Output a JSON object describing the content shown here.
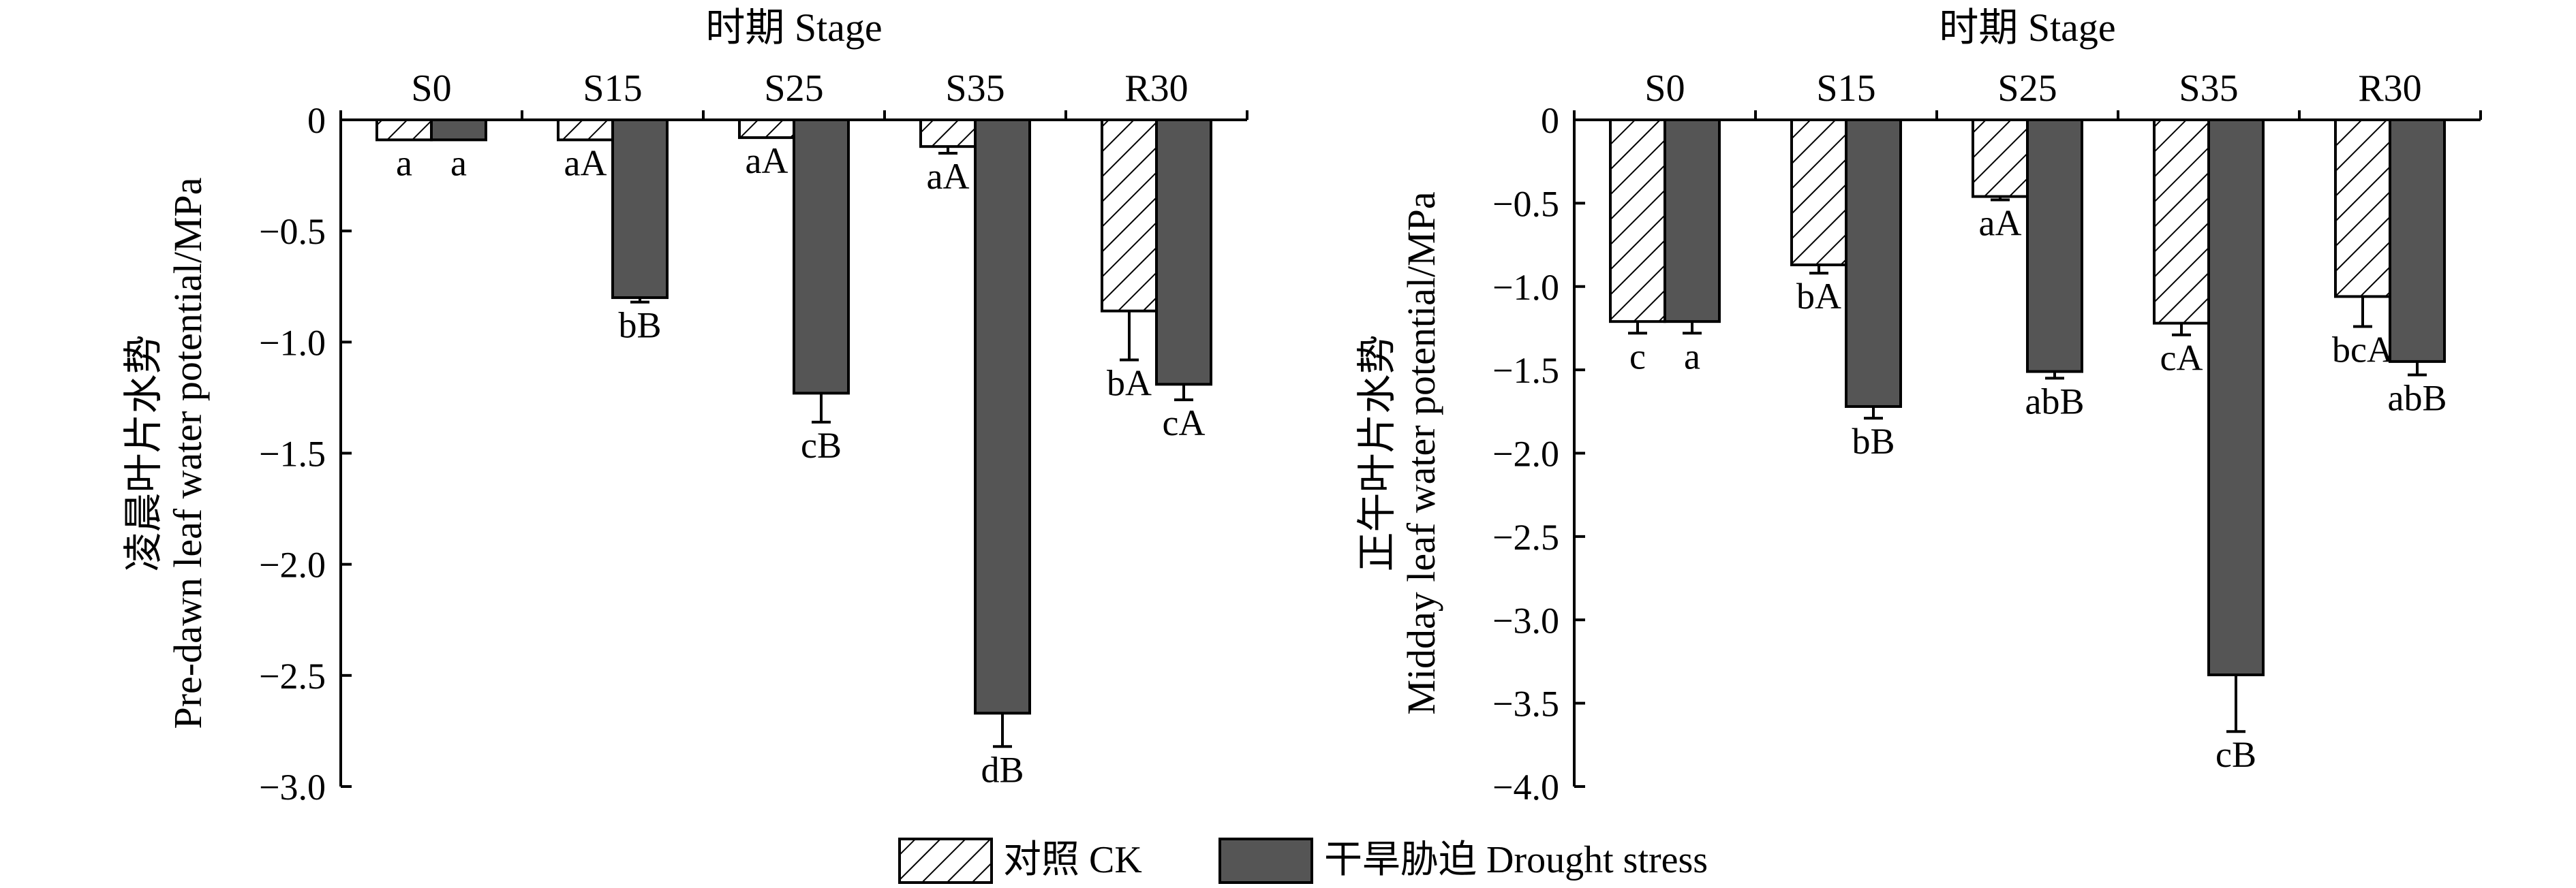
{
  "legend": [
    {
      "label": "对照 CK",
      "pattern": "hatch"
    },
    {
      "label": "干旱胁迫 Drought stress",
      "pattern": "solid"
    }
  ],
  "colors": {
    "drought_fill": "#555555",
    "ck_fill": "#ffffff",
    "line": "#000000"
  },
  "chart_data": [
    {
      "type": "bar",
      "title": "时期 Stage",
      "categories": [
        "S0",
        "S15",
        "S25",
        "S35",
        "R30"
      ],
      "ylabel_cn": "凌晨叶片水势",
      "ylabel_en": "Pre-dawn leaf water potential/MPa",
      "ylim": [
        -3.0,
        0
      ],
      "yticks": [
        0,
        -0.5,
        -1.0,
        -1.5,
        -2.0,
        -2.5,
        -3.0
      ],
      "ytick_labels": [
        "0",
        "−0.5",
        "−1.0",
        "−1.5",
        "−2.0",
        "−2.5",
        "−3.0"
      ],
      "series": [
        {
          "name": "对照 CK",
          "values": [
            -0.09,
            -0.09,
            -0.08,
            -0.12,
            -0.86
          ],
          "errors": [
            0.0,
            0.0,
            0.0,
            0.03,
            0.22
          ],
          "labels": [
            "a",
            "aA",
            "aA",
            "aA",
            "bA"
          ]
        },
        {
          "name": "干旱胁迫 Drought stress",
          "values": [
            -0.09,
            -0.8,
            -1.23,
            -2.67,
            -1.19
          ],
          "errors": [
            0.0,
            0.02,
            0.13,
            0.15,
            0.07
          ],
          "labels": [
            "a",
            "bB",
            "cB",
            "dB",
            "cA"
          ]
        }
      ]
    },
    {
      "type": "bar",
      "title": "时期 Stage",
      "categories": [
        "S0",
        "S15",
        "S25",
        "S35",
        "R30"
      ],
      "ylabel_cn": "正午叶片水势",
      "ylabel_en": "Midday leaf water potential/MPa",
      "ylim": [
        -4.0,
        0
      ],
      "yticks": [
        0,
        -0.5,
        -1.0,
        -1.5,
        -2.0,
        -2.5,
        -3.0,
        -3.5,
        -4.0
      ],
      "ytick_labels": [
        "0",
        "−0.5",
        "−1.0",
        "−1.5",
        "−2.0",
        "−2.5",
        "−3.0",
        "−3.5",
        "−4.0"
      ],
      "series": [
        {
          "name": "对照 CK",
          "values": [
            -1.21,
            -0.87,
            -0.46,
            -1.22,
            -1.06
          ],
          "errors": [
            0.07,
            0.05,
            0.02,
            0.07,
            0.18
          ],
          "labels": [
            "c",
            "bA",
            "aA",
            "cA",
            "bcA"
          ]
        },
        {
          "name": "干旱胁迫 Drought stress",
          "values": [
            -1.21,
            -1.72,
            -1.51,
            -3.33,
            -1.45
          ],
          "errors": [
            0.07,
            0.07,
            0.04,
            0.34,
            0.08
          ],
          "labels": [
            "a",
            "bB",
            "abB",
            "cB",
            "abB"
          ]
        }
      ]
    }
  ]
}
